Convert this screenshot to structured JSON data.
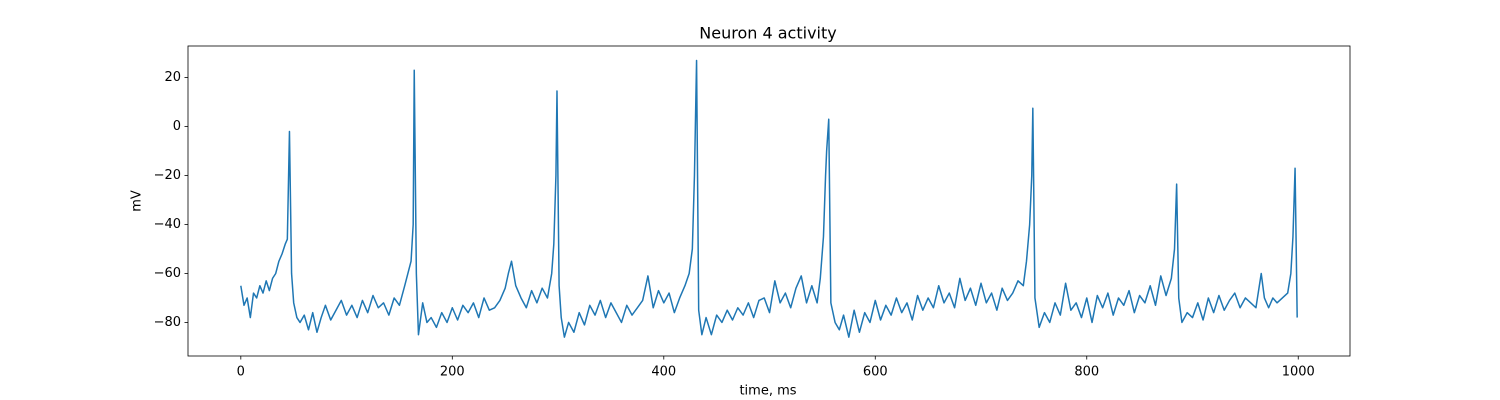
{
  "chart_data": {
    "type": "line",
    "title": "Neuron 4 activity",
    "x_label": "time, ms",
    "y_label": "mV",
    "xlim": [
      -49.95,
      1048.95
    ],
    "ylim": [
      -93.7,
      32.9
    ],
    "xticks": [
      0,
      200,
      400,
      600,
      800,
      1000
    ],
    "yticks": [
      {
        "value": -80,
        "label": "−80"
      },
      {
        "value": -60,
        "label": "−60"
      },
      {
        "value": -40,
        "label": "−40"
      },
      {
        "value": -20,
        "label": "−20"
      },
      0,
      20
    ],
    "grid": false,
    "series": [
      {
        "name": "Neuron 4",
        "color": "#1f77b4",
        "x": [
          0,
          3,
          6,
          9,
          12,
          15,
          18,
          21,
          24,
          27,
          30,
          33,
          36,
          39,
          42,
          44,
          46,
          48,
          50,
          53,
          56,
          60,
          64,
          68,
          72,
          76,
          80,
          85,
          90,
          95,
          100,
          105,
          110,
          115,
          120,
          125,
          130,
          135,
          140,
          145,
          150,
          155,
          158,
          161,
          163,
          164,
          166,
          168,
          172,
          176,
          180,
          185,
          190,
          195,
          200,
          205,
          210,
          215,
          220,
          225,
          230,
          235,
          240,
          245,
          250,
          253,
          256,
          260,
          265,
          270,
          275,
          280,
          285,
          290,
          294,
          296,
          298,
          299,
          301,
          303,
          306,
          310,
          315,
          320,
          325,
          330,
          335,
          340,
          345,
          350,
          355,
          360,
          365,
          370,
          375,
          380,
          385,
          390,
          395,
          400,
          405,
          410,
          415,
          420,
          424,
          427,
          429,
          431,
          433,
          436,
          440,
          445,
          450,
          455,
          460,
          465,
          470,
          475,
          480,
          485,
          490,
          495,
          500,
          505,
          510,
          515,
          520,
          525,
          530,
          535,
          540,
          545,
          548,
          551,
          553,
          554,
          556,
          558,
          562,
          566,
          570,
          575,
          580,
          585,
          590,
          595,
          600,
          605,
          610,
          615,
          620,
          625,
          630,
          635,
          640,
          645,
          650,
          655,
          660,
          665,
          670,
          675,
          680,
          685,
          690,
          695,
          700,
          705,
          710,
          715,
          720,
          725,
          730,
          735,
          740,
          743,
          746,
          748,
          749,
          751,
          755,
          760,
          765,
          770,
          775,
          780,
          785,
          790,
          795,
          800,
          805,
          810,
          815,
          820,
          825,
          830,
          835,
          840,
          845,
          850,
          855,
          860,
          865,
          870,
          875,
          880,
          883,
          885,
          887,
          890,
          895,
          900,
          905,
          910,
          915,
          920,
          925,
          930,
          935,
          940,
          945,
          950,
          955,
          960,
          965,
          968,
          972,
          976,
          980,
          985,
          990,
          993,
          995,
          997,
          999
        ],
        "values": [
          -65,
          -73,
          -70,
          -78,
          -68,
          -70,
          -65,
          -68,
          -63,
          -67,
          -62,
          -60,
          -55,
          -52,
          -48,
          -46,
          -2,
          -60,
          -72,
          -78,
          -80,
          -77,
          -83,
          -76,
          -84,
          -78,
          -73,
          -79,
          -75,
          -71,
          -77,
          -73,
          -78,
          -71,
          -76,
          -69,
          -74,
          -72,
          -77,
          -70,
          -73,
          -65,
          -60,
          -55,
          -40,
          23,
          -60,
          -85,
          -72,
          -80,
          -78,
          -82,
          -76,
          -80,
          -74,
          -79,
          -73,
          -76,
          -72,
          -78,
          -70,
          -75,
          -74,
          -71,
          -66,
          -60,
          -55,
          -65,
          -70,
          -74,
          -67,
          -72,
          -66,
          -70,
          -60,
          -48,
          -20,
          14.5,
          -65,
          -78,
          -86,
          -80,
          -84,
          -76,
          -81,
          -73,
          -77,
          -71,
          -78,
          -72,
          -76,
          -80,
          -73,
          -77,
          -74,
          -71,
          -61,
          -74,
          -67,
          -72,
          -68,
          -76,
          -70,
          -65,
          -60,
          -50,
          -20,
          27,
          -75,
          -85,
          -78,
          -85,
          -77,
          -80,
          -75,
          -79,
          -74,
          -77,
          -72,
          -78,
          -71,
          -70,
          -76,
          -63,
          -72,
          -68,
          -74,
          -66,
          -61,
          -72,
          -65,
          -72,
          -62,
          -45,
          -20,
          -10,
          3,
          -72,
          -80,
          -83,
          -77,
          -86,
          -75,
          -84,
          -76,
          -80,
          -71,
          -79,
          -73,
          -77,
          -70,
          -76,
          -72,
          -79,
          -69,
          -75,
          -70,
          -74,
          -65,
          -72,
          -68,
          -74,
          -62,
          -71,
          -66,
          -73,
          -64,
          -72,
          -68,
          -75,
          -66,
          -71,
          -68,
          -63,
          -65,
          -55,
          -40,
          -20,
          7.5,
          -70,
          -82,
          -76,
          -80,
          -72,
          -77,
          -64,
          -75,
          -72,
          -78,
          -70,
          -80,
          -69,
          -74,
          -68,
          -77,
          -70,
          -73,
          -67,
          -76,
          -69,
          -72,
          -65,
          -73,
          -61,
          -69,
          -62,
          -50,
          -23.5,
          -70,
          -80,
          -76,
          -78,
          -72,
          -79,
          -70,
          -76,
          -69,
          -75,
          -71,
          -68,
          -74,
          -70,
          -72,
          -74,
          -60,
          -70,
          -74,
          -70,
          -72,
          -70,
          -68,
          -60,
          -45,
          -17,
          -78
        ]
      }
    ]
  }
}
